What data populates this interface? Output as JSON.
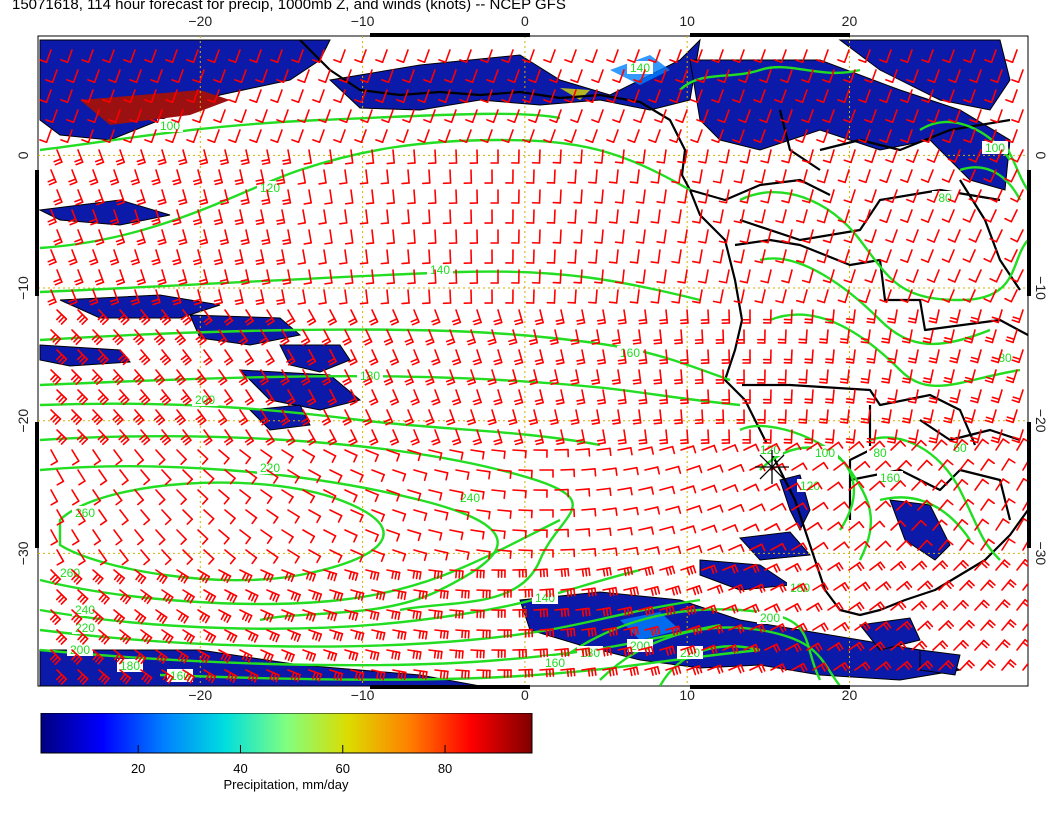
{
  "title": "15071618, 114 hour forecast for precip, 1000mb Z, and winds (knots) -- NCEP GFS",
  "map": {
    "lon_range": [
      -30,
      31
    ],
    "lat_range": [
      -40,
      9
    ],
    "lon_ticks": [
      -20,
      -10,
      0,
      10,
      20
    ],
    "lat_ticks": [
      0,
      -10,
      -20,
      -30
    ],
    "lon_tick_labels": [
      "−20",
      "−10",
      "0",
      "10",
      "20"
    ],
    "lat_tick_labels": [
      "0",
      "−10",
      "−20",
      "−30"
    ],
    "grid": true,
    "colors": {
      "contour": "#22dd22",
      "wind_barb": "#ff0000",
      "coastline": "#000000",
      "grid": "#d4b000"
    },
    "contour_labels": [
      "100",
      "120",
      "140",
      "160",
      "180",
      "200",
      "220",
      "240",
      "260",
      "260",
      "240",
      "220",
      "200",
      "180",
      "160",
      "140",
      "160",
      "180",
      "200",
      "220",
      "120",
      "100",
      "80",
      "120",
      "160",
      "180",
      "200",
      "60",
      "80",
      "100",
      "80",
      "140"
    ],
    "marker": "star-icon"
  },
  "colorbar": {
    "label": "Precipitation, mm/day",
    "ticks": [
      "20",
      "40",
      "60",
      "80"
    ],
    "tick_values": [
      20,
      40,
      60,
      80
    ],
    "range": [
      1,
      97
    ],
    "colors": [
      "#00007f",
      "#0000ff",
      "#0080ff",
      "#00dede",
      "#80ff80",
      "#dcdc00",
      "#ff8000",
      "#ff0000",
      "#800000"
    ]
  }
}
